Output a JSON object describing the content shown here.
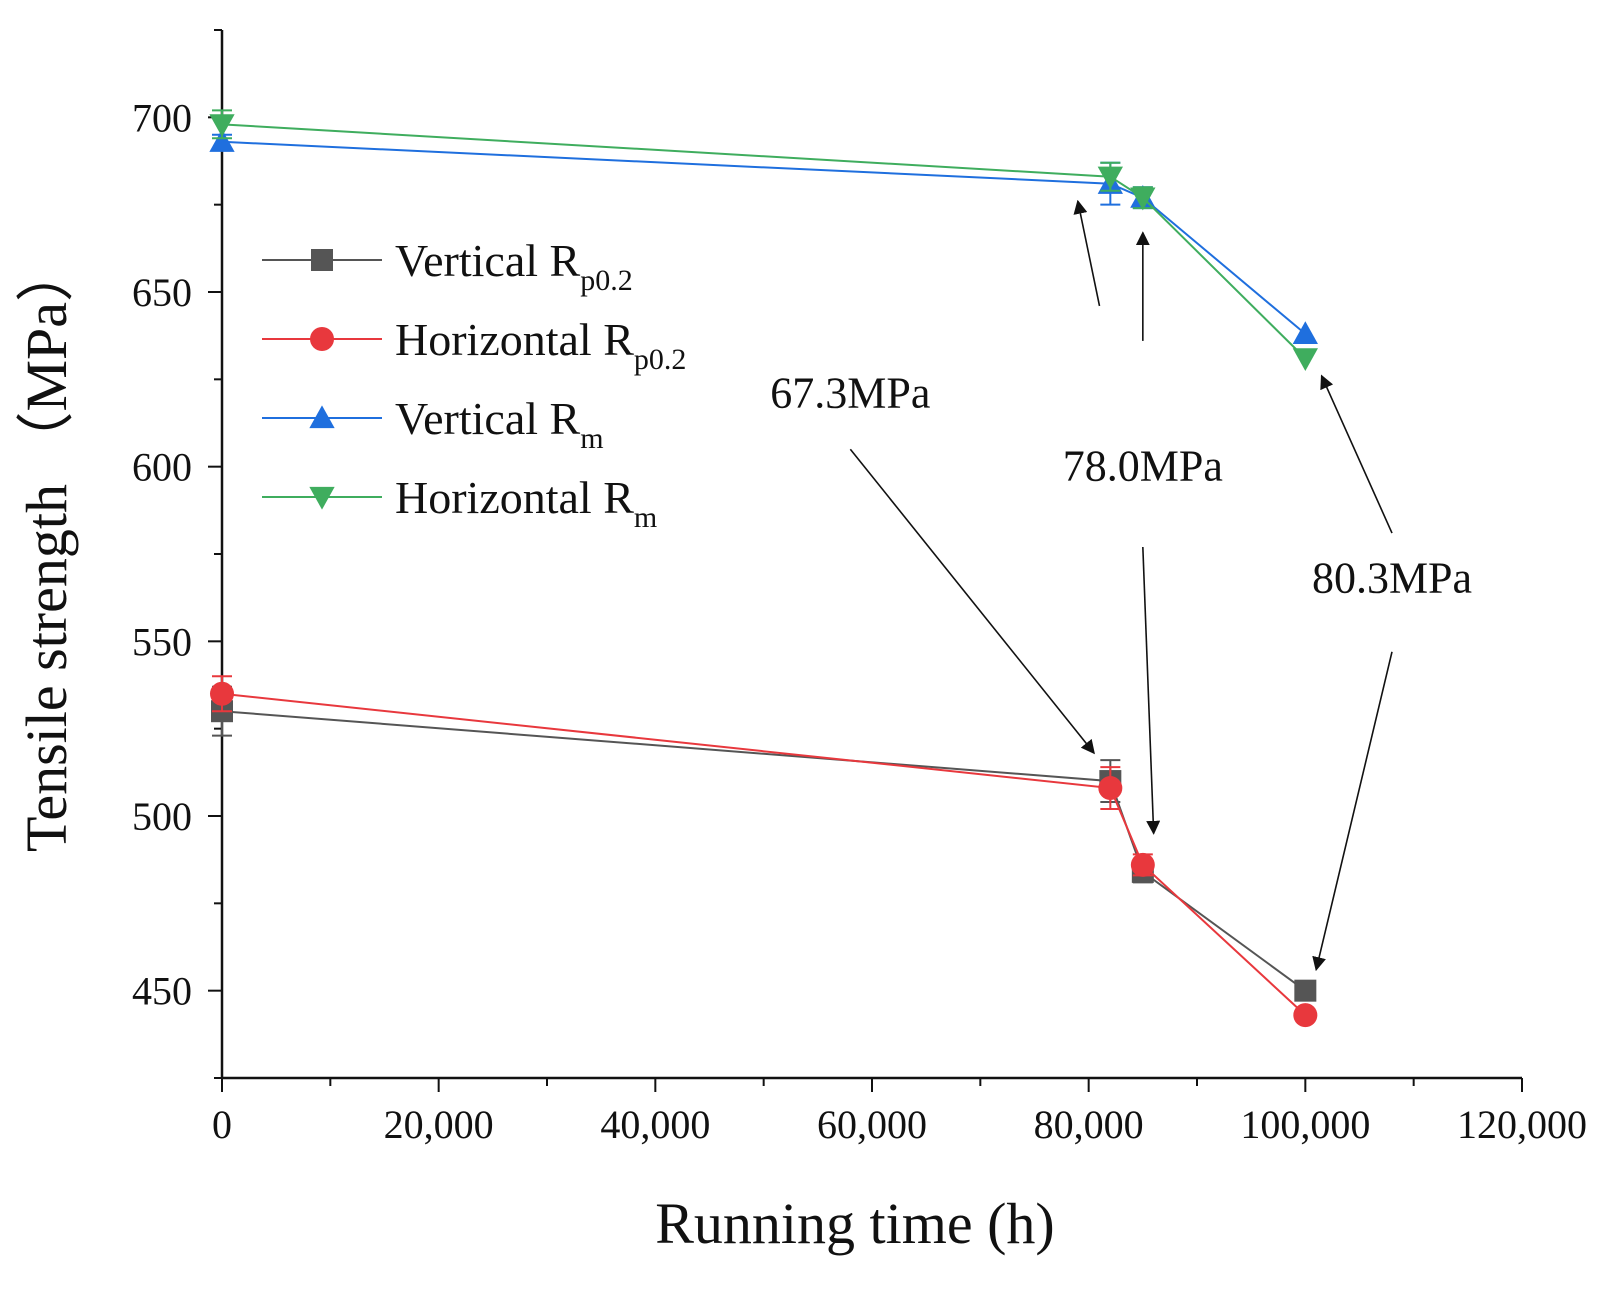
{
  "chart_data": {
    "type": "line",
    "title": "",
    "xlabel": "Running time (h)",
    "ylabel": "Tensile strength （MPa）",
    "xlim": [
      0,
      120000
    ],
    "ylim": [
      425,
      725
    ],
    "xticks": [
      0,
      20000,
      40000,
      60000,
      80000,
      100000,
      120000
    ],
    "xtick_labels": [
      "0",
      "20,000",
      "40,000",
      "60,000",
      "80,000",
      "100,000",
      "120,000"
    ],
    "yticks": [
      450,
      500,
      550,
      600,
      650,
      700
    ],
    "ytick_labels": [
      "450",
      "500",
      "550",
      "600",
      "650",
      "700"
    ],
    "grid": false,
    "legend_position": "middle-left",
    "series": [
      {
        "name": "Vertical R_p0.2",
        "legend_main": "Vertical R",
        "legend_sub": "p0.2",
        "color": "#555555",
        "marker": "square",
        "x": [
          0,
          82000,
          85000,
          100000
        ],
        "y": [
          530,
          510,
          484,
          450
        ],
        "err": [
          7,
          6,
          3,
          0
        ]
      },
      {
        "name": "Horizontal R_p0.2",
        "legend_main": "Horizontal R",
        "legend_sub": "p0.2",
        "color": "#e8383d",
        "marker": "circle",
        "x": [
          0,
          82000,
          85000,
          100000
        ],
        "y": [
          535,
          508,
          486,
          443
        ],
        "err": [
          5,
          6,
          3,
          0
        ]
      },
      {
        "name": "Vertical R_m",
        "legend_main": "Vertical R",
        "legend_sub": "m",
        "color": "#1f6fde",
        "marker": "triangle-up",
        "x": [
          0,
          82000,
          85000,
          100000
        ],
        "y": [
          693,
          681,
          677,
          638
        ],
        "err": [
          2,
          6,
          3,
          0
        ]
      },
      {
        "name": "Horizontal R_m",
        "legend_main": "Horizontal R",
        "legend_sub": "m",
        "color": "#3fad5e",
        "marker": "triangle-down",
        "x": [
          0,
          82000,
          85000,
          100000
        ],
        "y": [
          698,
          683,
          677,
          631
        ],
        "err": [
          4,
          4,
          3,
          0
        ]
      }
    ],
    "annotations": [
      {
        "text": "67.3MPa",
        "text_at": [
          58000,
          617
        ],
        "arrow_from": [
          [
            81000,
            646
          ],
          [
            58000,
            605
          ]
        ],
        "arrow_to": [
          [
            79000,
            676
          ],
          [
            80500,
            518
          ]
        ]
      },
      {
        "text": "78.0MPa",
        "text_at": [
          85000,
          596
        ],
        "arrow_from": [
          [
            85000,
            636
          ],
          [
            85000,
            577
          ]
        ],
        "arrow_to": [
          [
            85000,
            667
          ],
          [
            86000,
            495
          ]
        ]
      },
      {
        "text": "80.3MPa",
        "text_at": [
          108000,
          564
        ],
        "arrow_from": [
          [
            108000,
            581
          ],
          [
            108000,
            547
          ]
        ],
        "arrow_to": [
          [
            101500,
            626
          ],
          [
            101000,
            456
          ]
        ]
      }
    ]
  }
}
